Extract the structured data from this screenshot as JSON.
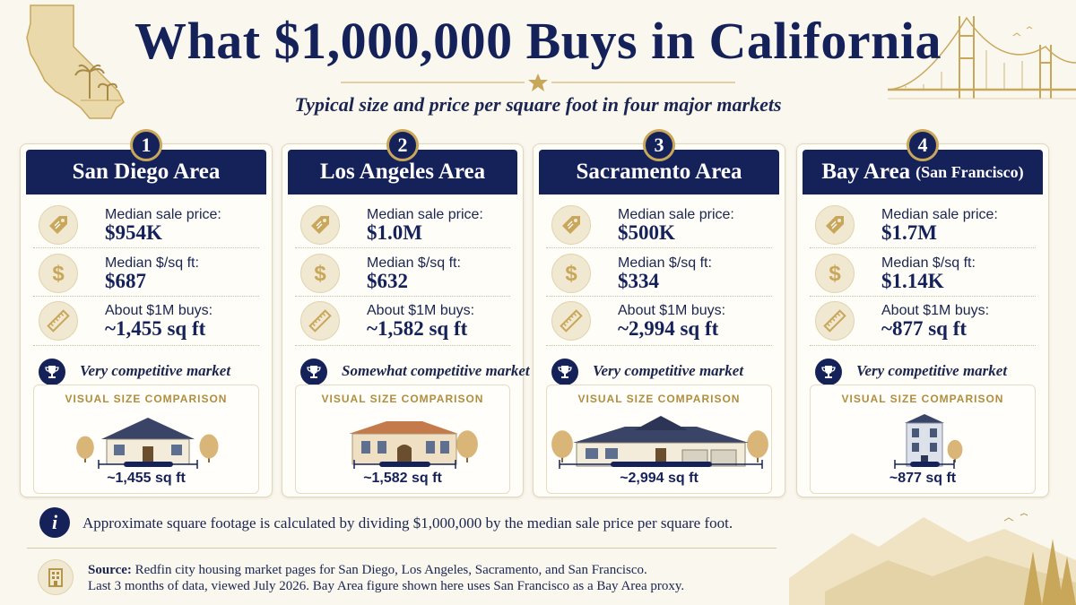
{
  "title": "What $1,000,000 Buys in California",
  "subtitle": "Typical size and price per square foot in four major markets",
  "labels": {
    "median_price": "Median sale price:",
    "median_psf": "Median $/sq ft:",
    "buys": "About $1M buys:",
    "visual": "VISUAL SIZE COMPARISON"
  },
  "cards": [
    {
      "number": "1",
      "name": "San Diego Area",
      "name_small": "",
      "price": "$954K",
      "psf": "$687",
      "sqft": "~1,455 sq ft",
      "competition": "Very competitive market",
      "bar_sqft": 1455
    },
    {
      "number": "2",
      "name": "Los Angeles Area",
      "name_small": "",
      "price": "$1.0M",
      "psf": "$632",
      "sqft": "~1,582 sq ft",
      "competition": "Somewhat competitive market",
      "bar_sqft": 1582
    },
    {
      "number": "3",
      "name": "Sacramento Area",
      "name_small": "",
      "price": "$500K",
      "psf": "$334",
      "sqft": "~2,994 sq ft",
      "competition": "Very competitive market",
      "bar_sqft": 2994
    },
    {
      "number": "4",
      "name": "Bay Area",
      "name_small": "(San Francisco)",
      "price": "$1.7M",
      "psf": "$1.14K",
      "sqft": "~877 sq ft",
      "competition": "Very competitive market",
      "bar_sqft": 877
    }
  ],
  "note": "Approximate square footage is calculated by dividing $1,000,000 by the median sale price per square foot.",
  "source": {
    "label": "Source:",
    "line1": "Redfin city housing market pages for San Diego, Los Angeles, Sacramento, and San Francisco.",
    "line2": "Last 3 months of data, viewed July 2026. Bay Area figure shown here uses San Francisco as a Bay Area proxy."
  },
  "colors": {
    "navy": "#15225a",
    "gold": "#c9a75a",
    "cream": "#faf7ef"
  },
  "icons": {
    "price": "price-tag-icon",
    "psf": "dollar-icon",
    "buys": "ruler-icon",
    "competition": "trophy-icon",
    "info": "info-icon",
    "source": "building-icon"
  }
}
